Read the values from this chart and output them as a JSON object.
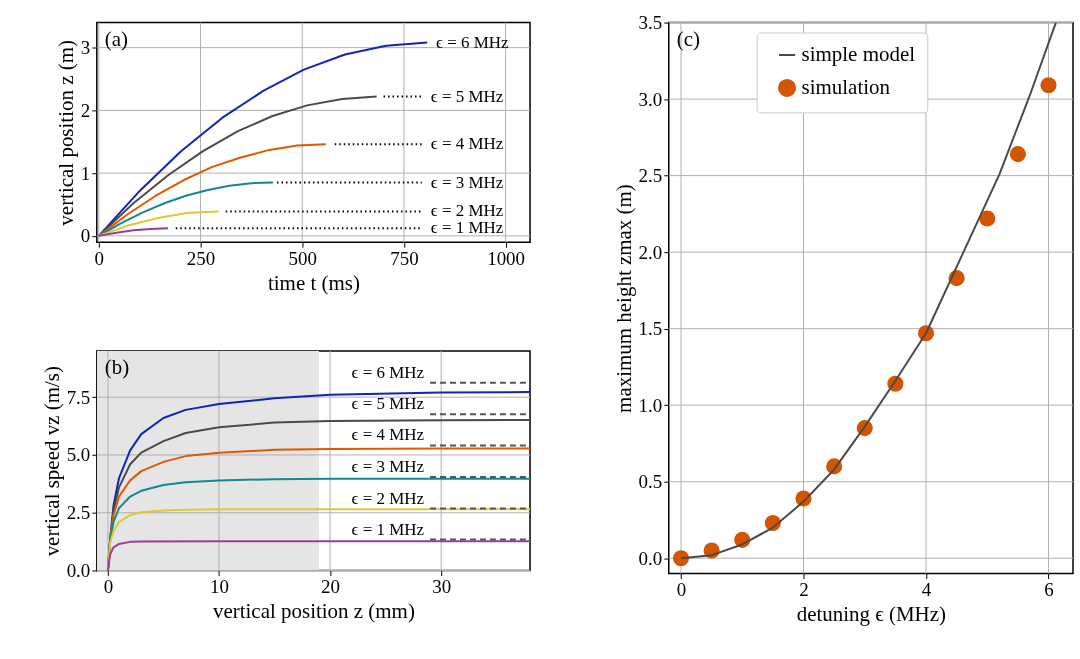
{
  "chart_data": [
    {
      "type": "line",
      "xlabel": "time t (ms)",
      "ylabel": "vertical position z (m)",
      "xlim": [
        -5,
        1060
      ],
      "ylim": [
        -0.1,
        3.4
      ],
      "xticks": [
        0,
        250,
        500,
        750,
        1000
      ],
      "yticks": [
        0,
        1,
        2,
        3
      ],
      "grid": true,
      "annotations": [
        "(a)",
        {
          "text": "ϵ = 6 MHz",
          "x": 807,
          "y": 3.08
        },
        {
          "text": "ϵ = 5 MHz",
          "x": 794,
          "y": 2.22
        },
        {
          "text": "ϵ = 4 MHz",
          "x": 794,
          "y": 1.46
        },
        {
          "text": "ϵ = 3 MHz",
          "x": 794,
          "y": 0.85
        },
        {
          "text": "ϵ = 2 MHz",
          "x": 794,
          "y": 0.39
        },
        {
          "text": "ϵ = 1 MHz",
          "x": 794,
          "y": 0.12
        }
      ],
      "series": [
        {
          "color": "#1025b0",
          "x": [
            0,
            101,
            202,
            303,
            404,
            504,
            605,
            706,
            807
          ],
          "values": [
            0,
            0.72,
            1.35,
            1.88,
            2.31,
            2.65,
            2.89,
            3.03,
            3.08
          ]
        },
        {
          "color": "#4a4a4a",
          "x": [
            0,
            85,
            171,
            256,
            342,
            427,
            512,
            598,
            683
          ],
          "values": [
            0,
            0.52,
            0.97,
            1.35,
            1.67,
            1.91,
            2.08,
            2.18,
            2.22
          ]
        },
        {
          "color": "#dc5a00",
          "x": [
            0,
            70,
            140,
            209,
            279,
            349,
            419,
            488,
            558
          ],
          "values": [
            0,
            0.34,
            0.64,
            0.89,
            1.1,
            1.25,
            1.37,
            1.44,
            1.46
          ]
        },
        {
          "color": "#14878f",
          "x": [
            0,
            54,
            107,
            161,
            214,
            268,
            321,
            375,
            428
          ],
          "values": [
            0,
            0.2,
            0.37,
            0.52,
            0.64,
            0.73,
            0.8,
            0.84,
            0.85
          ]
        },
        {
          "color": "#dcc83a",
          "x": [
            0,
            74,
            148,
            221,
            295
          ],
          "values": [
            0,
            0.17,
            0.29,
            0.37,
            0.39
          ]
        },
        {
          "color": "#9b3a9b",
          "x": [
            0,
            43,
            85,
            128,
            170
          ],
          "values": [
            0,
            0.05,
            0.09,
            0.11,
            0.12
          ]
        },
        {
          "color": "#000000",
          "line_style": "dotted",
          "x": [
            700,
            794
          ],
          "values": [
            2.22,
            2.22
          ]
        },
        {
          "color": "#000000",
          "line_style": "dotted",
          "x": [
            580,
            794
          ],
          "values": [
            1.46,
            1.46
          ]
        },
        {
          "color": "#000000",
          "line_style": "dotted",
          "x": [
            438,
            794
          ],
          "values": [
            0.85,
            0.85
          ]
        },
        {
          "color": "#000000",
          "line_style": "dotted",
          "x": [
            312,
            794
          ],
          "values": [
            0.39,
            0.39
          ]
        },
        {
          "color": "#000000",
          "line_style": "dotted",
          "x": [
            189,
            794
          ],
          "values": [
            0.12,
            0.12
          ]
        }
      ]
    },
    {
      "type": "line",
      "xlabel": "vertical position z (mm)",
      "ylabel": "vertical speed vz (m/s)",
      "xlim": [
        -1,
        38
      ],
      "ylim": [
        0,
        9.5
      ],
      "xticks": [
        0,
        10,
        20,
        30
      ],
      "yticks": [
        {
          "value": 0,
          "label": "0.0"
        },
        2.5,
        {
          "value": 5,
          "label": "5.0"
        },
        7.5
      ],
      "grid": true,
      "bands": [
        {
          "axis": "x",
          "from": -1,
          "to": 19,
          "color": "#e5e5e5"
        }
      ],
      "annotations": [
        "(b)",
        {
          "text": "ϵ = 6 MHz",
          "x": 29,
          "y": 8.12
        },
        {
          "text": "ϵ = 5 MHz",
          "x": 29,
          "y": 6.76
        },
        {
          "text": "ϵ = 4 MHz",
          "x": 29,
          "y": 5.41
        },
        {
          "text": "ϵ = 3 MHz",
          "x": 29,
          "y": 4.05
        },
        {
          "text": "ϵ = 2 MHz",
          "x": 29,
          "y": 2.68
        },
        {
          "text": "ϵ = 1 MHz",
          "x": 29,
          "y": 1.34
        }
      ],
      "series": [
        {
          "color": "#1025b0",
          "x": [
            0,
            0.2,
            0.5,
            1,
            2,
            3,
            5,
            7,
            10,
            15,
            20,
            30,
            38
          ],
          "values": [
            0,
            1.35,
            2.8,
            4.0,
            5.2,
            5.9,
            6.6,
            6.95,
            7.2,
            7.45,
            7.6,
            7.7,
            7.72
          ]
        },
        {
          "color": "#4a4a4a",
          "x": [
            0,
            0.2,
            0.5,
            1,
            2,
            3,
            5,
            7,
            10,
            15,
            20,
            30,
            38
          ],
          "values": [
            0,
            1.35,
            2.6,
            3.6,
            4.6,
            5.1,
            5.6,
            5.95,
            6.2,
            6.4,
            6.47,
            6.5,
            6.51
          ]
        },
        {
          "color": "#dc5a00",
          "x": [
            0,
            0.2,
            0.5,
            1,
            2,
            3,
            5,
            7,
            10,
            15,
            20,
            30,
            38
          ],
          "values": [
            0,
            1.35,
            2.4,
            3.2,
            3.9,
            4.3,
            4.7,
            4.95,
            5.1,
            5.22,
            5.26,
            5.28,
            5.28
          ]
        },
        {
          "color": "#14878f",
          "x": [
            0,
            0.2,
            0.5,
            1,
            2,
            3,
            5,
            7,
            10,
            15,
            20,
            30,
            38
          ],
          "values": [
            0,
            1.3,
            2.1,
            2.7,
            3.2,
            3.45,
            3.7,
            3.82,
            3.9,
            3.95,
            3.97,
            3.97,
            3.97
          ]
        },
        {
          "color": "#dcc83a",
          "x": [
            0,
            0.2,
            0.5,
            1,
            2,
            3,
            5,
            7,
            10,
            20,
            38
          ],
          "values": [
            0,
            1.2,
            1.7,
            2.1,
            2.4,
            2.52,
            2.6,
            2.63,
            2.65,
            2.65,
            2.65
          ]
        },
        {
          "color": "#9b3a9b",
          "x": [
            0,
            0.2,
            0.5,
            1,
            2,
            3,
            10,
            38
          ],
          "values": [
            0,
            0.7,
            1.0,
            1.15,
            1.24,
            1.26,
            1.27,
            1.27
          ]
        },
        {
          "color": "#555555",
          "line_style": "dashed",
          "x": [
            29,
            38
          ],
          "values": [
            8.12,
            8.12
          ]
        },
        {
          "color": "#555555",
          "line_style": "dashed",
          "x": [
            29,
            38
          ],
          "values": [
            6.76,
            6.76
          ]
        },
        {
          "color": "#555555",
          "line_style": "dashed",
          "x": [
            29,
            38
          ],
          "values": [
            5.41,
            5.41
          ]
        },
        {
          "color": "#555555",
          "line_style": "dashed",
          "x": [
            29,
            38
          ],
          "values": [
            4.05,
            4.05
          ]
        },
        {
          "color": "#555555",
          "line_style": "dashed",
          "x": [
            29,
            38
          ],
          "values": [
            2.68,
            2.68
          ]
        },
        {
          "color": "#555555",
          "line_style": "dashed",
          "x": [
            29,
            38
          ],
          "values": [
            1.34,
            1.34
          ]
        }
      ]
    },
    {
      "type": "line",
      "xlabel": "detuning ϵ (MHz)",
      "ylabel": "maximum height zmax (m)",
      "xlim": [
        -0.2,
        6.4
      ],
      "ylim": [
        -0.1,
        3.5
      ],
      "xticks": [
        0,
        2,
        4,
        6
      ],
      "yticks": [
        {
          "value": 0,
          "label": "0.0"
        },
        0.5,
        {
          "value": 1,
          "label": "1.0"
        },
        1.5,
        {
          "value": 2,
          "label": "2.0"
        },
        2.5,
        {
          "value": 3,
          "label": "3.0"
        },
        3.5
      ],
      "grid": true,
      "legend": "top left",
      "annotations": [
        "(c)"
      ],
      "series": [
        {
          "name": "simple model",
          "color": "#4a4a4a",
          "x": [
            0,
            0.5,
            1,
            1.5,
            2,
            2.5,
            3,
            3.5,
            4,
            4.6,
            5.2,
            5.7,
            6.12
          ],
          "values": [
            0,
            0.02,
            0.09,
            0.2,
            0.37,
            0.58,
            0.86,
            1.16,
            1.47,
            1.99,
            2.51,
            3.03,
            3.5
          ]
        },
        {
          "name": "simulation",
          "type": "scatter",
          "marker": "circle",
          "color": "#d45500",
          "x": [
            0,
            0.5,
            1,
            1.5,
            2,
            2.5,
            3,
            3.5,
            4,
            4.5,
            5,
            5.5,
            6
          ],
          "values": [
            0,
            0.05,
            0.12,
            0.23,
            0.39,
            0.6,
            0.85,
            1.14,
            1.47,
            1.83,
            2.22,
            2.64,
            3.09
          ]
        }
      ]
    }
  ]
}
